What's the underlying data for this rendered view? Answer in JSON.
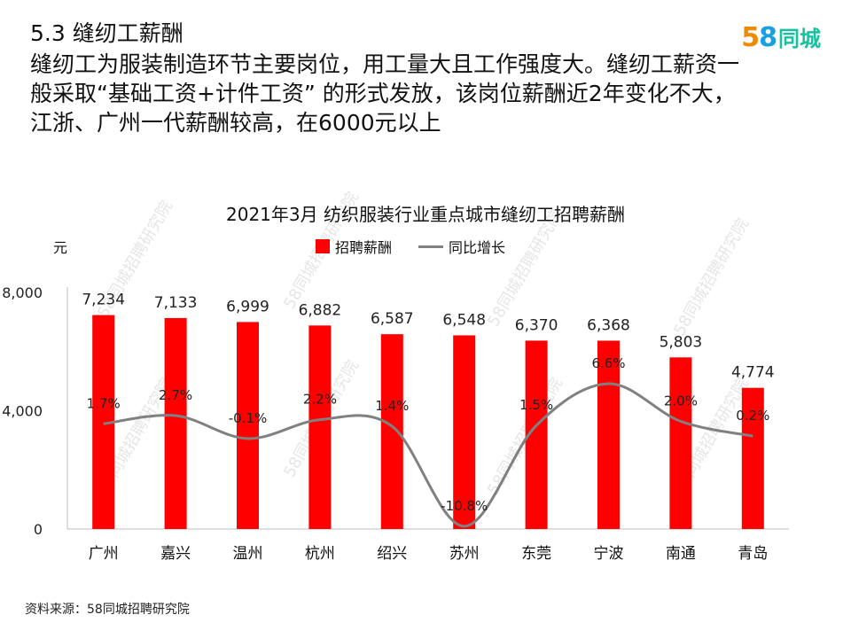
{
  "header": {
    "section_title": "5.3 缝纫工薪酬",
    "summary": "缝纫工为服装制造环节主要岗位，用工量大且工作强度大。缝纫工薪资一般采取“基础工资+计件工资” 的形式发放，该岗位薪酬近2年变化不大，江浙、广州一代薪酬较高，在6000元以上"
  },
  "logo": {
    "num_5": "5",
    "num_8": "8",
    "text": "同城"
  },
  "watermark": "58同城招聘研究院",
  "source": "资料来源：58同城招聘研究院",
  "chart_data": {
    "type": "bar",
    "title": "2021年3月  纺织服装行业重点城市缝纫工招聘薪酬",
    "yunit": "元",
    "categories": [
      "广州",
      "嘉兴",
      "温州",
      "杭州",
      "绍兴",
      "苏州",
      "东莞",
      "宁波",
      "南通",
      "青岛"
    ],
    "ylim": [
      0,
      8000
    ],
    "yticks": [
      "0",
      "4,000",
      "8,000"
    ],
    "bar_color": "#ff0000",
    "line_color": "#808080",
    "series": [
      {
        "name": "招聘薪酬",
        "type": "bar",
        "values": [
          7234,
          7133,
          6999,
          6882,
          6587,
          6548,
          6370,
          6368,
          5803,
          4774
        ],
        "labels": [
          "7,234",
          "7,133",
          "6,999",
          "6,882",
          "6,587",
          "6,548",
          "6,370",
          "6,368",
          "5,803",
          "4,774"
        ]
      },
      {
        "name": "同比增长",
        "type": "line",
        "values": [
          1.7,
          2.7,
          -0.1,
          2.2,
          1.4,
          -10.8,
          1.5,
          6.6,
          2.0,
          0.2
        ],
        "labels": [
          "1.7%",
          "2.7%",
          "-0.1%",
          "2.2%",
          "1.4%",
          "-10.8%",
          "1.5%",
          "6.6%",
          "2.0%",
          "0.2%"
        ]
      }
    ],
    "legend": "top",
    "grid": false
  }
}
